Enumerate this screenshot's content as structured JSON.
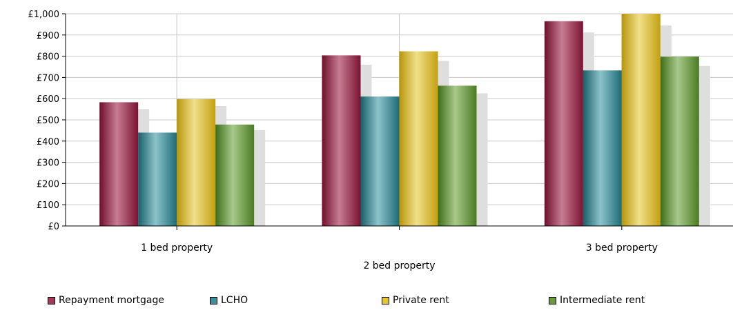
{
  "chart_data": {
    "type": "bar",
    "categories": [
      "1 bed property",
      "2 bed property",
      "3 bed property"
    ],
    "series": [
      {
        "name": "Repayment mortgage",
        "values": [
          583,
          804,
          965
        ],
        "color": "#8e1b3d"
      },
      {
        "name": "LCHO",
        "values": [
          440,
          610,
          733
        ],
        "color": "#2a7f8c"
      },
      {
        "name": "Private rent",
        "values": [
          598,
          823,
          1000
        ],
        "color": "#d8b618"
      },
      {
        "name": "Intermediate rent",
        "values": [
          478,
          661,
          798
        ],
        "color": "#5a8a2e"
      }
    ],
    "ylim": [
      0,
      1000
    ],
    "yticks": [
      "£0",
      "£100",
      "£200",
      "£300",
      "£400",
      "£500",
      "£600",
      "£700",
      "£800",
      "£900",
      "£1,000"
    ],
    "grid": true,
    "legend_position": "bottom"
  }
}
